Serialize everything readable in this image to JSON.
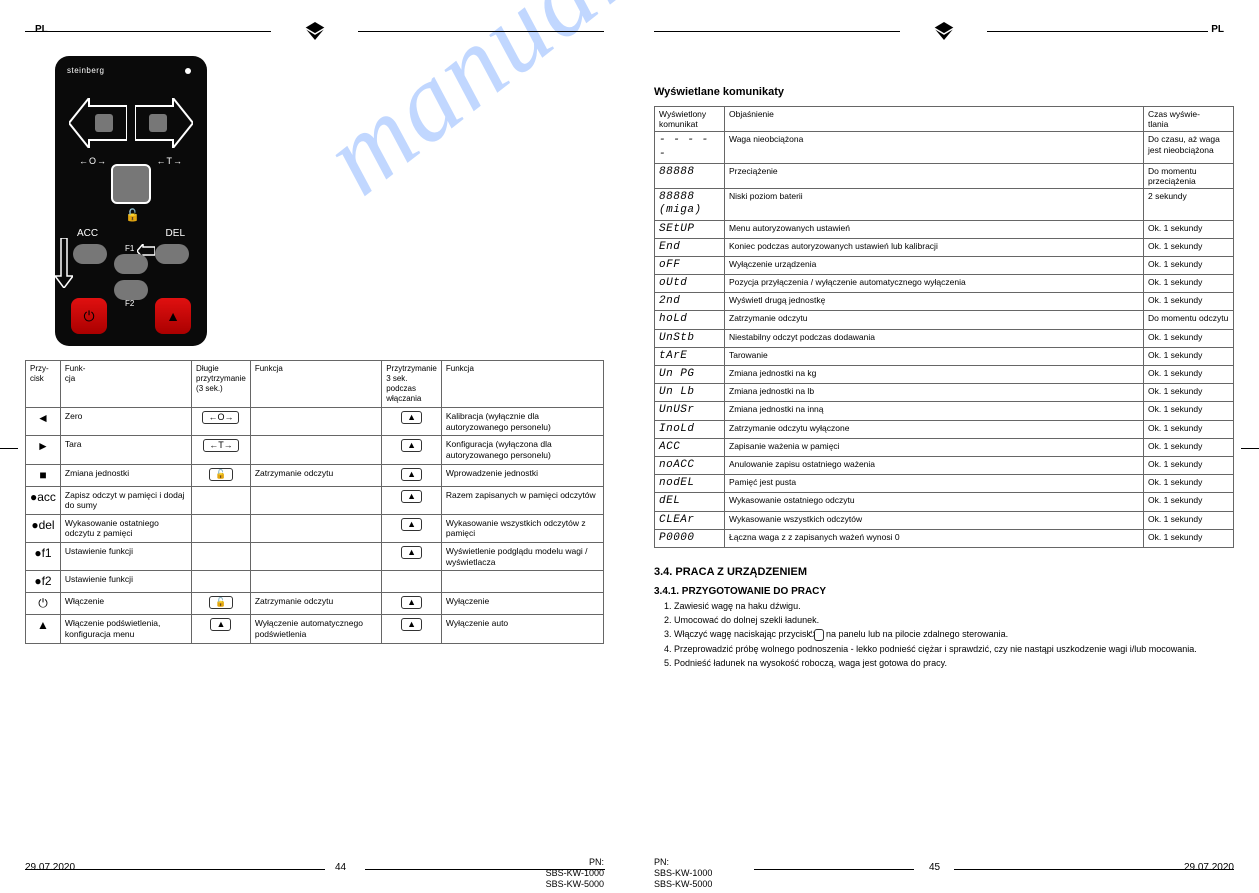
{
  "watermark_text": "manualshiv.com",
  "header_left": {
    "label": "PL",
    "logo_color": "#000000"
  },
  "header_right": {
    "label": "PL",
    "logo_color": "#000000"
  },
  "footer_left": {
    "date": "29.07.2020",
    "pagenum": "44",
    "pn_label": "PN",
    "pn1": "SBS-KW-1000",
    "pn2": "SBS-KW-5000"
  },
  "footer_right": {
    "date": "29.07.2020",
    "pagenum": "45",
    "pn_label": "PN",
    "pn1": "SBS-KW-1000",
    "pn2": "SBS-KW-5000"
  },
  "remote": {
    "brand": "steinberg",
    "zo": "←O→",
    "zt": "←T→",
    "acc": "ACC",
    "del": "DEL",
    "f1": "F1",
    "f2": "F2",
    "power_glyph": "⏻",
    "up_glyph": "▲"
  },
  "btn_table": {
    "headers": [
      "Przy-\ncisk",
      "Funk-\ncja",
      "Długie\nprzytrzymanie\n(3 sek.)",
      "Funkcja",
      "Przytrzymanie\n3 sek. podczas\nwłączania",
      "Funkcja"
    ],
    "rows": [
      {
        "sym": "◄",
        "f1": "Zero",
        "lp": "←O→",
        "f2": "",
        "pw": "▲",
        "f3": "Kalibracja (wyłącznie dla autoryzowanego personelu)"
      },
      {
        "sym": "►",
        "f1": "Tara",
        "lp": "←T→",
        "f2": "",
        "pw": "▲",
        "f3": "Konfiguracja (wyłączona dla autoryzowanego personelu)"
      },
      {
        "sym": "■",
        "f1": "Zmiana jednostki",
        "lp": "🔓",
        "f2": "Zatrzymanie odczytu",
        "pw": "▲",
        "f3": "Wprowadzenie jednostki"
      },
      {
        "sym": "●acc",
        "f1": "Zapisz odczyt w pamięci i dodaj do sumy",
        "lp": "",
        "f2": "",
        "pw": "▲",
        "f3": "Razem zapisanych w pamięci odczytów"
      },
      {
        "sym": "●del",
        "f1": "Wykasowanie ostatniego odczytu z pamięci",
        "lp": "",
        "f2": "",
        "pw": "▲",
        "f3": "Wykasowanie wszystkich odczytów z pamięci"
      },
      {
        "sym": "●f1",
        "f1": "Ustawienie funkcji",
        "lp": "",
        "f2": "",
        "pw": "▲",
        "f3": "Wyświetlenie podglądu modelu wagi / wyświetlacza"
      },
      {
        "sym": "●f2",
        "f1": "Ustawienie funkcji",
        "lp": "",
        "f2": "",
        "pw": "",
        "f3": ""
      },
      {
        "sym": "⏻",
        "f1": "Włączenie",
        "lp": "🔓",
        "f2": "Zatrzymanie odczytu",
        "pw": "▲",
        "f3": "Wyłączenie"
      },
      {
        "sym": "▲",
        "f1": "Włączenie podświetlenia, konfiguracja menu",
        "lp": "▲",
        "f2": "Wyłączenie automatycznego podświetlenia",
        "pw": "▲",
        "f3": "Wyłączenie auto"
      }
    ]
  },
  "messages": {
    "title": "Wyświetlane komunikaty",
    "headers": [
      "Wyświetlony\nkomunikat",
      "Objaśnienie",
      "Czas wyświe-\ntlania"
    ],
    "rows": [
      {
        "d": "- - - - -",
        "o": "Waga nieobciążona",
        "t": "Do czasu, aż waga jest nieobciążona"
      },
      {
        "d": "88888",
        "o": "Przeciążenie",
        "t": "Do momentu przeciążenia"
      },
      {
        "d": "88888 (miga)",
        "o": "Niski poziom baterii",
        "t": "2 sekundy"
      },
      {
        "d": "SEtUP",
        "o": "Menu autoryzowanych ustawień",
        "t": "Ok. 1 sekundy"
      },
      {
        "d": "End",
        "o": "Koniec podczas autoryzowanych ustawień lub kalibracji",
        "t": "Ok. 1 sekundy"
      },
      {
        "d": "oFF",
        "o": "Wyłączenie urządzenia",
        "t": "Ok. 1 sekundy"
      },
      {
        "d": "oUtd",
        "o": "Pozycja przyłączenia / wyłączenie automatycznego wyłączenia",
        "t": "Ok. 1 sekundy"
      },
      {
        "d": "2nd",
        "o": "Wyświetl drugą jednostkę",
        "t": "Ok. 1 sekundy"
      },
      {
        "d": "hoLd",
        "o": "Zatrzymanie odczytu",
        "t": "Do momentu odczytu"
      },
      {
        "d": "UnStb",
        "o": "Niestabilny odczyt podczas dodawania",
        "t": "Ok. 1 sekundy"
      },
      {
        "d": "tArE",
        "o": "Tarowanie",
        "t": "Ok. 1 sekundy"
      },
      {
        "d": "Un PG",
        "o": "Zmiana jednostki na kg",
        "t": "Ok. 1 sekundy"
      },
      {
        "d": "Un Lb",
        "o": "Zmiana jednostki na lb",
        "t": "Ok. 1 sekundy"
      },
      {
        "d": "UnUSr",
        "o": "Zmiana jednostki na inną",
        "t": "Ok. 1 sekundy"
      },
      {
        "d": "InoLd",
        "o": "Zatrzymanie odczytu wyłączone",
        "t": "Ok. 1 sekundy"
      },
      {
        "d": "ACC",
        "o": "Zapisanie ważenia w pamięci",
        "t": "Ok. 1 sekundy"
      },
      {
        "d": "noACC",
        "o": "Anulowanie zapisu ostatniego ważenia",
        "t": "Ok. 1 sekundy"
      },
      {
        "d": "nodEL",
        "o": "Pamięć jest pusta",
        "t": "Ok. 1 sekundy"
      },
      {
        "d": "dEL",
        "o": "Wykasowanie ostatniego odczytu",
        "t": "Ok. 1 sekundy"
      },
      {
        "d": "CLEAr",
        "o": "Wykasowanie wszystkich odczytów",
        "t": "Ok. 1 sekundy"
      },
      {
        "d": "P0000",
        "o": "Łączna waga z z zapisanych ważeń wynosi 0",
        "t": "Ok. 1 sekundy"
      }
    ]
  },
  "operation": {
    "title": "3.4. PRACA Z URZĄDZENIEM",
    "sub1": "3.4.1. PRZYGOTOWANIE DO PRACY",
    "steps": [
      "1. Zawiesić wagę na haku dźwigu.",
      "2. Umocować do dolnej szekli ładunek.",
      "3. Włączyć wagę naciskając przycisk ⏻ na panelu lub na pilocie zdalnego sterowania.",
      "4. Przeprowadzić próbę wolnego podnoszenia - lekko podnieść ciężar i sprawdzić, czy nie nastąpi uszkodzenie wagi i/lub mocowania.",
      "5. Podnieść ładunek na wysokość roboczą, waga jest gotowa do pracy."
    ]
  }
}
